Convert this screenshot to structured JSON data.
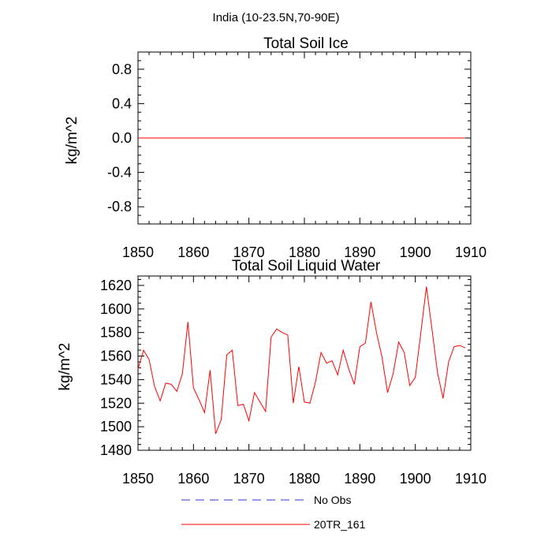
{
  "suptitle": "India (10-23.5N,70-90E)",
  "colors": {
    "model": "#ff0000",
    "obs": "#3333cc",
    "axis": "#000000"
  },
  "chart_data": [
    {
      "type": "line",
      "title": "Total Soil Ice",
      "xlabel": "",
      "ylabel": "kg/m^2",
      "xlim": [
        1850,
        1910
      ],
      "ylim": [
        -1.0,
        1.0
      ],
      "xticks": [
        1850,
        1860,
        1870,
        1880,
        1890,
        1900,
        1910
      ],
      "xtick_labels": [
        "1850",
        "1860",
        "1870",
        "1880",
        "1890",
        "1900",
        "1910"
      ],
      "yticks": [
        -0.8,
        -0.4,
        0.0,
        0.4,
        0.8
      ],
      "ytick_labels": [
        "-0.8",
        "-0.4",
        "0.0",
        "0.4",
        "0.8"
      ],
      "series": [
        {
          "name": "20TR_161",
          "x": [
            1850,
            1909
          ],
          "values": [
            0.0,
            0.0
          ]
        }
      ]
    },
    {
      "type": "line",
      "title": "Total Soil Liquid Water",
      "xlabel": "",
      "ylabel": "kg/m^2",
      "xlim": [
        1850,
        1910
      ],
      "ylim": [
        1480,
        1628
      ],
      "xticks": [
        1850,
        1860,
        1870,
        1880,
        1890,
        1900,
        1910
      ],
      "xtick_labels": [
        "1850",
        "1860",
        "1870",
        "1880",
        "1890",
        "1900",
        "1910"
      ],
      "yticks": [
        1480,
        1500,
        1520,
        1540,
        1560,
        1580,
        1600,
        1620
      ],
      "ytick_labels": [
        "1480",
        "1500",
        "1520",
        "1540",
        "1560",
        "1580",
        "1600",
        "1620"
      ],
      "series": [
        {
          "name": "20TR_161",
          "x": [
            1850,
            1851,
            1852,
            1853,
            1854,
            1855,
            1856,
            1857,
            1858,
            1859,
            1860,
            1861,
            1862,
            1863,
            1864,
            1865,
            1866,
            1867,
            1868,
            1869,
            1870,
            1871,
            1872,
            1873,
            1874,
            1875,
            1876,
            1877,
            1878,
            1879,
            1880,
            1881,
            1882,
            1883,
            1884,
            1885,
            1886,
            1887,
            1888,
            1889,
            1890,
            1891,
            1892,
            1893,
            1894,
            1895,
            1896,
            1897,
            1898,
            1899,
            1900,
            1901,
            1902,
            1903,
            1904,
            1905,
            1906,
            1907,
            1908,
            1909
          ],
          "values": [
            1549,
            1565,
            1557,
            1534,
            1522,
            1537,
            1536,
            1530,
            1545,
            1589,
            1533,
            1523,
            1512,
            1548,
            1494,
            1506,
            1561,
            1565,
            1518,
            1519,
            1505,
            1529,
            1521,
            1513,
            1576,
            1583,
            1580,
            1578,
            1520,
            1551,
            1521,
            1520,
            1538,
            1563,
            1554,
            1556,
            1544,
            1565,
            1549,
            1536,
            1568,
            1571,
            1606,
            1580,
            1559,
            1529,
            1545,
            1572,
            1563,
            1535,
            1542,
            1580,
            1619,
            1583,
            1546,
            1524,
            1555,
            1568,
            1569,
            1567
          ]
        }
      ]
    }
  ],
  "legend": [
    {
      "label": "No Obs",
      "style": "dashed",
      "color": "#3333cc"
    },
    {
      "label": "20TR_161",
      "style": "solid",
      "color": "#ff0000"
    }
  ]
}
